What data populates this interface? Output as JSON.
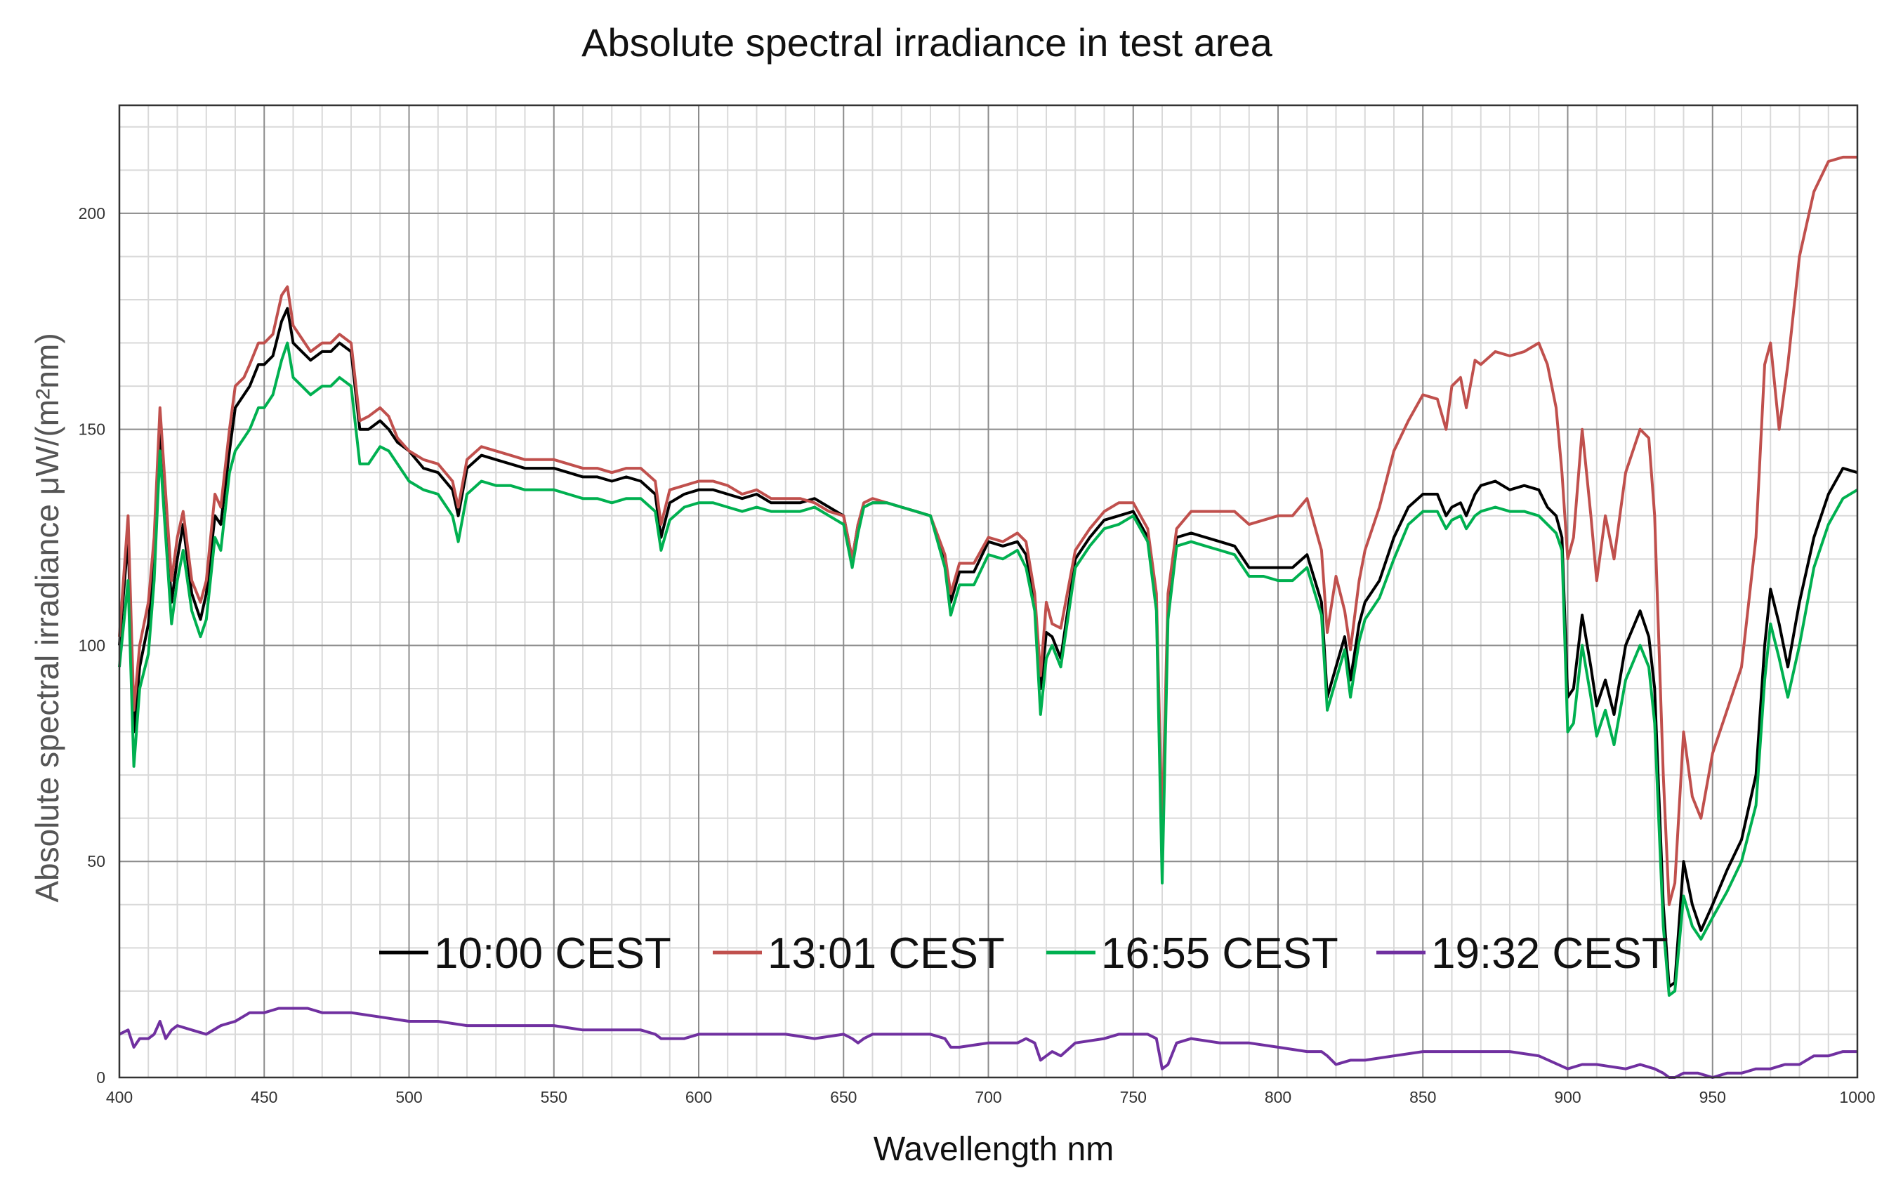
{
  "chart_data": {
    "type": "line",
    "title": "Absolute spectral irradiance  in test area",
    "xlabel": "Wavellength  nm",
    "ylabel": "Absolute spectral  irradiance  μW/(m²nm)",
    "xlim": [
      400,
      1000
    ],
    "ylim": [
      0,
      225
    ],
    "xticks": [
      400,
      450,
      500,
      550,
      600,
      650,
      700,
      750,
      800,
      850,
      900,
      950,
      1000
    ],
    "yticks": [
      0,
      50,
      100,
      150,
      200
    ],
    "grid": true,
    "legend_position": "bottom-center, inside plot",
    "series": [
      {
        "name": "10:00 CEST",
        "color": "#000000",
        "x": [
          400,
          403,
          405,
          407,
          410,
          412,
          414,
          416,
          418,
          420,
          422,
          425,
          428,
          430,
          433,
          435,
          438,
          440,
          443,
          445,
          448,
          450,
          453,
          456,
          458,
          460,
          463,
          466,
          470,
          473,
          476,
          480,
          483,
          486,
          490,
          493,
          496,
          500,
          505,
          510,
          515,
          517,
          520,
          525,
          530,
          535,
          540,
          545,
          550,
          555,
          560,
          565,
          570,
          575,
          580,
          585,
          587,
          590,
          595,
          600,
          605,
          610,
          615,
          620,
          625,
          630,
          635,
          640,
          645,
          650,
          653,
          655,
          657,
          660,
          665,
          670,
          675,
          680,
          685,
          687,
          690,
          695,
          700,
          705,
          710,
          713,
          716,
          718,
          720,
          722,
          725,
          730,
          735,
          740,
          745,
          750,
          755,
          758,
          760,
          762,
          765,
          770,
          775,
          780,
          785,
          790,
          795,
          800,
          805,
          810,
          815,
          817,
          820,
          823,
          825,
          828,
          830,
          835,
          840,
          845,
          850,
          855,
          858,
          860,
          863,
          865,
          868,
          870,
          875,
          880,
          885,
          890,
          893,
          896,
          898,
          900,
          902,
          905,
          908,
          910,
          913,
          916,
          920,
          925,
          928,
          930,
          933,
          935,
          937,
          940,
          943,
          946,
          950,
          955,
          960,
          965,
          968,
          970,
          973,
          976,
          980,
          985,
          990,
          995,
          1000
        ],
        "values": [
          100,
          125,
          80,
          95,
          105,
          120,
          150,
          130,
          110,
          120,
          128,
          112,
          106,
          112,
          130,
          128,
          145,
          155,
          158,
          160,
          165,
          165,
          167,
          175,
          178,
          170,
          168,
          166,
          168,
          168,
          170,
          168,
          150,
          150,
          152,
          150,
          147,
          145,
          141,
          140,
          136,
          130,
          141,
          144,
          143,
          142,
          141,
          141,
          141,
          140,
          139,
          139,
          138,
          139,
          138,
          135,
          125,
          133,
          135,
          136,
          136,
          135,
          134,
          135,
          133,
          133,
          133,
          134,
          132,
          130,
          120,
          128,
          132,
          133,
          133,
          132,
          131,
          130,
          120,
          110,
          117,
          117,
          124,
          123,
          124,
          121,
          110,
          90,
          103,
          102,
          97,
          120,
          125,
          129,
          130,
          131,
          125,
          110,
          50,
          110,
          125,
          126,
          125,
          124,
          123,
          118,
          118,
          118,
          118,
          121,
          110,
          88,
          95,
          102,
          92,
          105,
          110,
          115,
          125,
          132,
          135,
          135,
          130,
          132,
          133,
          130,
          135,
          137,
          138,
          136,
          137,
          136,
          132,
          130,
          125,
          88,
          90,
          107,
          95,
          86,
          92,
          84,
          100,
          108,
          102,
          90,
          40,
          21,
          22,
          50,
          40,
          34,
          40,
          48,
          55,
          70,
          100,
          113,
          105,
          95,
          110,
          125,
          135,
          141,
          140
        ]
      },
      {
        "name": "13:01 CEST",
        "color": "#c0504d",
        "x": [
          400,
          403,
          405,
          407,
          410,
          412,
          414,
          416,
          418,
          420,
          422,
          425,
          428,
          430,
          433,
          435,
          438,
          440,
          443,
          445,
          448,
          450,
          453,
          456,
          458,
          460,
          463,
          466,
          470,
          473,
          476,
          480,
          483,
          486,
          490,
          493,
          496,
          500,
          505,
          510,
          515,
          517,
          520,
          525,
          530,
          535,
          540,
          545,
          550,
          555,
          560,
          565,
          570,
          575,
          580,
          585,
          587,
          590,
          595,
          600,
          605,
          610,
          615,
          620,
          625,
          630,
          635,
          640,
          645,
          650,
          653,
          655,
          657,
          660,
          665,
          670,
          675,
          680,
          685,
          687,
          690,
          695,
          700,
          705,
          710,
          713,
          716,
          718,
          720,
          722,
          725,
          730,
          735,
          740,
          745,
          750,
          755,
          758,
          760,
          762,
          765,
          770,
          775,
          780,
          785,
          790,
          795,
          800,
          805,
          810,
          815,
          817,
          820,
          823,
          825,
          828,
          830,
          835,
          840,
          845,
          850,
          855,
          858,
          860,
          863,
          865,
          868,
          870,
          875,
          880,
          885,
          890,
          893,
          896,
          898,
          900,
          902,
          905,
          908,
          910,
          913,
          916,
          920,
          925,
          928,
          930,
          933,
          935,
          937,
          940,
          943,
          946,
          950,
          955,
          960,
          965,
          968,
          970,
          973,
          976,
          980,
          985,
          990,
          995,
          1000
        ],
        "values": [
          102,
          130,
          85,
          100,
          110,
          125,
          155,
          135,
          115,
          125,
          131,
          115,
          110,
          115,
          135,
          132,
          150,
          160,
          162,
          165,
          170,
          170,
          172,
          181,
          183,
          174,
          171,
          168,
          170,
          170,
          172,
          170,
          152,
          153,
          155,
          153,
          148,
          145,
          143,
          142,
          138,
          132,
          143,
          146,
          145,
          144,
          143,
          143,
          143,
          142,
          141,
          141,
          140,
          141,
          141,
          138,
          128,
          136,
          137,
          138,
          138,
          137,
          135,
          136,
          134,
          134,
          134,
          133,
          131,
          130,
          120,
          128,
          133,
          134,
          133,
          132,
          131,
          130,
          121,
          112,
          119,
          119,
          125,
          124,
          126,
          124,
          112,
          93,
          110,
          105,
          104,
          122,
          127,
          131,
          133,
          133,
          127,
          112,
          57,
          112,
          127,
          131,
          131,
          131,
          131,
          128,
          129,
          130,
          130,
          134,
          122,
          103,
          116,
          108,
          99,
          115,
          122,
          132,
          145,
          152,
          158,
          157,
          150,
          160,
          162,
          155,
          166,
          165,
          168,
          167,
          168,
          170,
          165,
          155,
          140,
          120,
          125,
          150,
          130,
          115,
          130,
          120,
          140,
          150,
          148,
          130,
          70,
          40,
          45,
          80,
          65,
          60,
          75,
          85,
          95,
          125,
          165,
          170,
          150,
          165,
          190,
          205,
          212,
          213,
          213
        ]
      },
      {
        "name": "16:55 CEST",
        "color": "#00b050",
        "x": [
          400,
          403,
          405,
          407,
          410,
          412,
          414,
          416,
          418,
          420,
          422,
          425,
          428,
          430,
          433,
          435,
          438,
          440,
          443,
          445,
          448,
          450,
          453,
          456,
          458,
          460,
          463,
          466,
          470,
          473,
          476,
          480,
          483,
          486,
          490,
          493,
          496,
          500,
          505,
          510,
          515,
          517,
          520,
          525,
          530,
          535,
          540,
          545,
          550,
          555,
          560,
          565,
          570,
          575,
          580,
          585,
          587,
          590,
          595,
          600,
          605,
          610,
          615,
          620,
          625,
          630,
          635,
          640,
          645,
          650,
          653,
          655,
          657,
          660,
          665,
          670,
          675,
          680,
          685,
          687,
          690,
          695,
          700,
          705,
          710,
          713,
          716,
          718,
          720,
          722,
          725,
          730,
          735,
          740,
          745,
          750,
          755,
          758,
          760,
          762,
          765,
          770,
          775,
          780,
          785,
          790,
          795,
          800,
          805,
          810,
          815,
          817,
          820,
          823,
          825,
          828,
          830,
          835,
          840,
          845,
          850,
          855,
          858,
          860,
          863,
          865,
          868,
          870,
          875,
          880,
          885,
          890,
          893,
          896,
          898,
          900,
          902,
          905,
          908,
          910,
          913,
          916,
          920,
          925,
          928,
          930,
          933,
          935,
          937,
          940,
          943,
          946,
          950,
          955,
          960,
          965,
          968,
          970,
          973,
          976,
          980,
          985,
          990,
          995,
          1000
        ],
        "values": [
          95,
          115,
          72,
          90,
          98,
          115,
          145,
          125,
          105,
          115,
          122,
          108,
          102,
          106,
          125,
          122,
          140,
          145,
          148,
          150,
          155,
          155,
          158,
          166,
          170,
          162,
          160,
          158,
          160,
          160,
          162,
          160,
          142,
          142,
          146,
          145,
          142,
          138,
          136,
          135,
          130,
          124,
          135,
          138,
          137,
          137,
          136,
          136,
          136,
          135,
          134,
          134,
          133,
          134,
          134,
          131,
          122,
          129,
          132,
          133,
          133,
          132,
          131,
          132,
          131,
          131,
          131,
          132,
          130,
          128,
          118,
          126,
          132,
          133,
          133,
          132,
          131,
          130,
          118,
          107,
          114,
          114,
          121,
          120,
          122,
          118,
          108,
          84,
          97,
          100,
          95,
          118,
          123,
          127,
          128,
          130,
          124,
          108,
          45,
          106,
          123,
          124,
          123,
          122,
          121,
          116,
          116,
          115,
          115,
          118,
          107,
          85,
          92,
          99,
          88,
          101,
          106,
          111,
          120,
          128,
          131,
          131,
          127,
          129,
          130,
          127,
          130,
          131,
          132,
          131,
          131,
          130,
          128,
          126,
          122,
          80,
          82,
          100,
          88,
          79,
          85,
          77,
          92,
          100,
          95,
          82,
          35,
          19,
          20,
          42,
          35,
          32,
          37,
          43,
          50,
          63,
          92,
          105,
          97,
          88,
          100,
          118,
          128,
          134,
          136
        ]
      },
      {
        "name": "19:32 CEST",
        "color": "#7030a0",
        "x": [
          400,
          403,
          405,
          407,
          410,
          412,
          414,
          416,
          418,
          420,
          425,
          430,
          435,
          440,
          445,
          450,
          455,
          460,
          465,
          470,
          475,
          480,
          490,
          500,
          510,
          520,
          530,
          540,
          550,
          560,
          570,
          580,
          585,
          587,
          590,
          595,
          600,
          610,
          620,
          630,
          640,
          650,
          653,
          655,
          657,
          660,
          670,
          680,
          685,
          687,
          690,
          700,
          710,
          713,
          716,
          718,
          720,
          722,
          725,
          730,
          740,
          745,
          750,
          755,
          758,
          760,
          762,
          765,
          770,
          780,
          790,
          800,
          810,
          815,
          817,
          820,
          825,
          830,
          840,
          850,
          860,
          870,
          880,
          890,
          900,
          905,
          910,
          920,
          925,
          930,
          933,
          935,
          937,
          940,
          945,
          950,
          955,
          960,
          965,
          970,
          975,
          980,
          985,
          990,
          995,
          1000
        ],
        "values": [
          10,
          11,
          7,
          9,
          9,
          10,
          13,
          9,
          11,
          12,
          11,
          10,
          12,
          13,
          15,
          15,
          16,
          16,
          16,
          15,
          15,
          15,
          14,
          13,
          13,
          12,
          12,
          12,
          12,
          11,
          11,
          11,
          10,
          9,
          9,
          9,
          10,
          10,
          10,
          10,
          9,
          10,
          9,
          8,
          9,
          10,
          10,
          10,
          9,
          7,
          7,
          8,
          8,
          9,
          8,
          4,
          5,
          6,
          5,
          8,
          9,
          10,
          10,
          10,
          9,
          2,
          3,
          8,
          9,
          8,
          8,
          7,
          6,
          6,
          5,
          3,
          4,
          4,
          5,
          6,
          6,
          6,
          6,
          5,
          2,
          3,
          3,
          2,
          3,
          2,
          1,
          0,
          0,
          1,
          1,
          0,
          1,
          1,
          2,
          2,
          3,
          3,
          5,
          5,
          6,
          6
        ]
      }
    ]
  }
}
